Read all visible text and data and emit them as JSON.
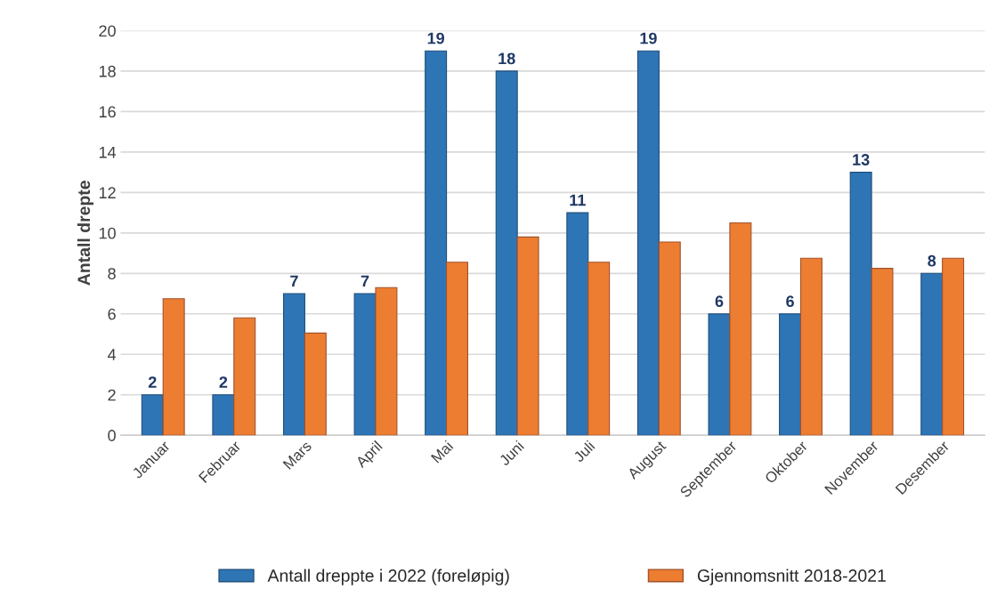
{
  "chart_data": {
    "type": "bar",
    "ylabel": "Antall drepte",
    "categories": [
      "Januar",
      "Februar",
      "Mars",
      "April",
      "Mai",
      "Juni",
      "Juli",
      "August",
      "September",
      "Oktober",
      "November",
      "Desember"
    ],
    "series": [
      {
        "name": "Antall dreppte i 2022 (foreløpig)",
        "color": "#2e75b6",
        "values": [
          2,
          2,
          7,
          7,
          19,
          18,
          11,
          19,
          6,
          6,
          13,
          8
        ],
        "value_labels": [
          "2",
          "2",
          "7",
          "7",
          "19",
          "18",
          "11",
          "19",
          "6",
          "6",
          "13",
          "8"
        ]
      },
      {
        "name": "Gjennomsnitt 2018-2021",
        "color": "#ed7d31",
        "values": [
          6.75,
          5.8,
          5.05,
          7.3,
          8.55,
          9.8,
          8.55,
          9.55,
          10.5,
          8.75,
          8.25,
          8.75
        ]
      }
    ],
    "ylim": [
      0,
      20
    ],
    "yticks": [
      0,
      2,
      4,
      6,
      8,
      10,
      12,
      14,
      16,
      18,
      20
    ],
    "grid": "y",
    "legend": "bottom"
  }
}
